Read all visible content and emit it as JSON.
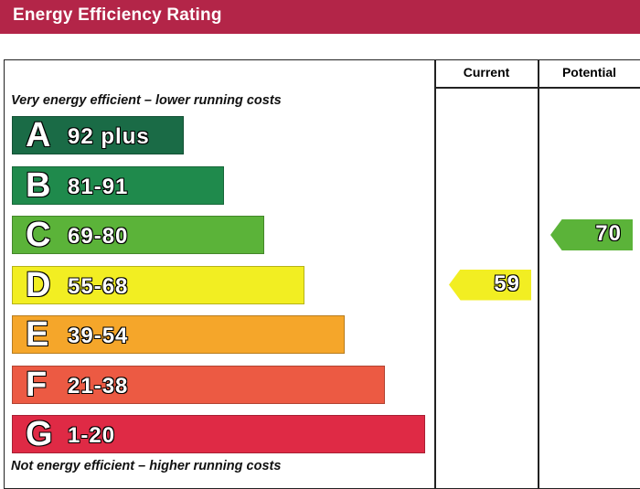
{
  "header": {
    "title": "Energy Efficiency Rating"
  },
  "columns": {
    "current": "Current",
    "potential": "Potential"
  },
  "notes": {
    "top": "Very energy efficient – lower running costs",
    "bottom": "Not energy efficient – higher running costs"
  },
  "chart_data": {
    "type": "bar",
    "title": "Energy Efficiency Rating",
    "categories": [
      "A",
      "B",
      "C",
      "D",
      "E",
      "F",
      "G"
    ],
    "bands": [
      {
        "letter": "A",
        "range": "92 plus",
        "color": "#1a6b46"
      },
      {
        "letter": "B",
        "range": "81-91",
        "color": "#1f8a4c"
      },
      {
        "letter": "C",
        "range": "69-80",
        "color": "#5bb339"
      },
      {
        "letter": "D",
        "range": "55-68",
        "color": "#f2ee22"
      },
      {
        "letter": "E",
        "range": "39-54",
        "color": "#f5a62a"
      },
      {
        "letter": "F",
        "range": "21-38",
        "color": "#ec5a43"
      },
      {
        "letter": "G",
        "range": "1-20",
        "color": "#df2a45"
      }
    ],
    "current": {
      "value": "59",
      "band": "D",
      "color": "#f2ee22"
    },
    "potential": {
      "value": "70",
      "band": "C",
      "color": "#5bb339"
    }
  }
}
